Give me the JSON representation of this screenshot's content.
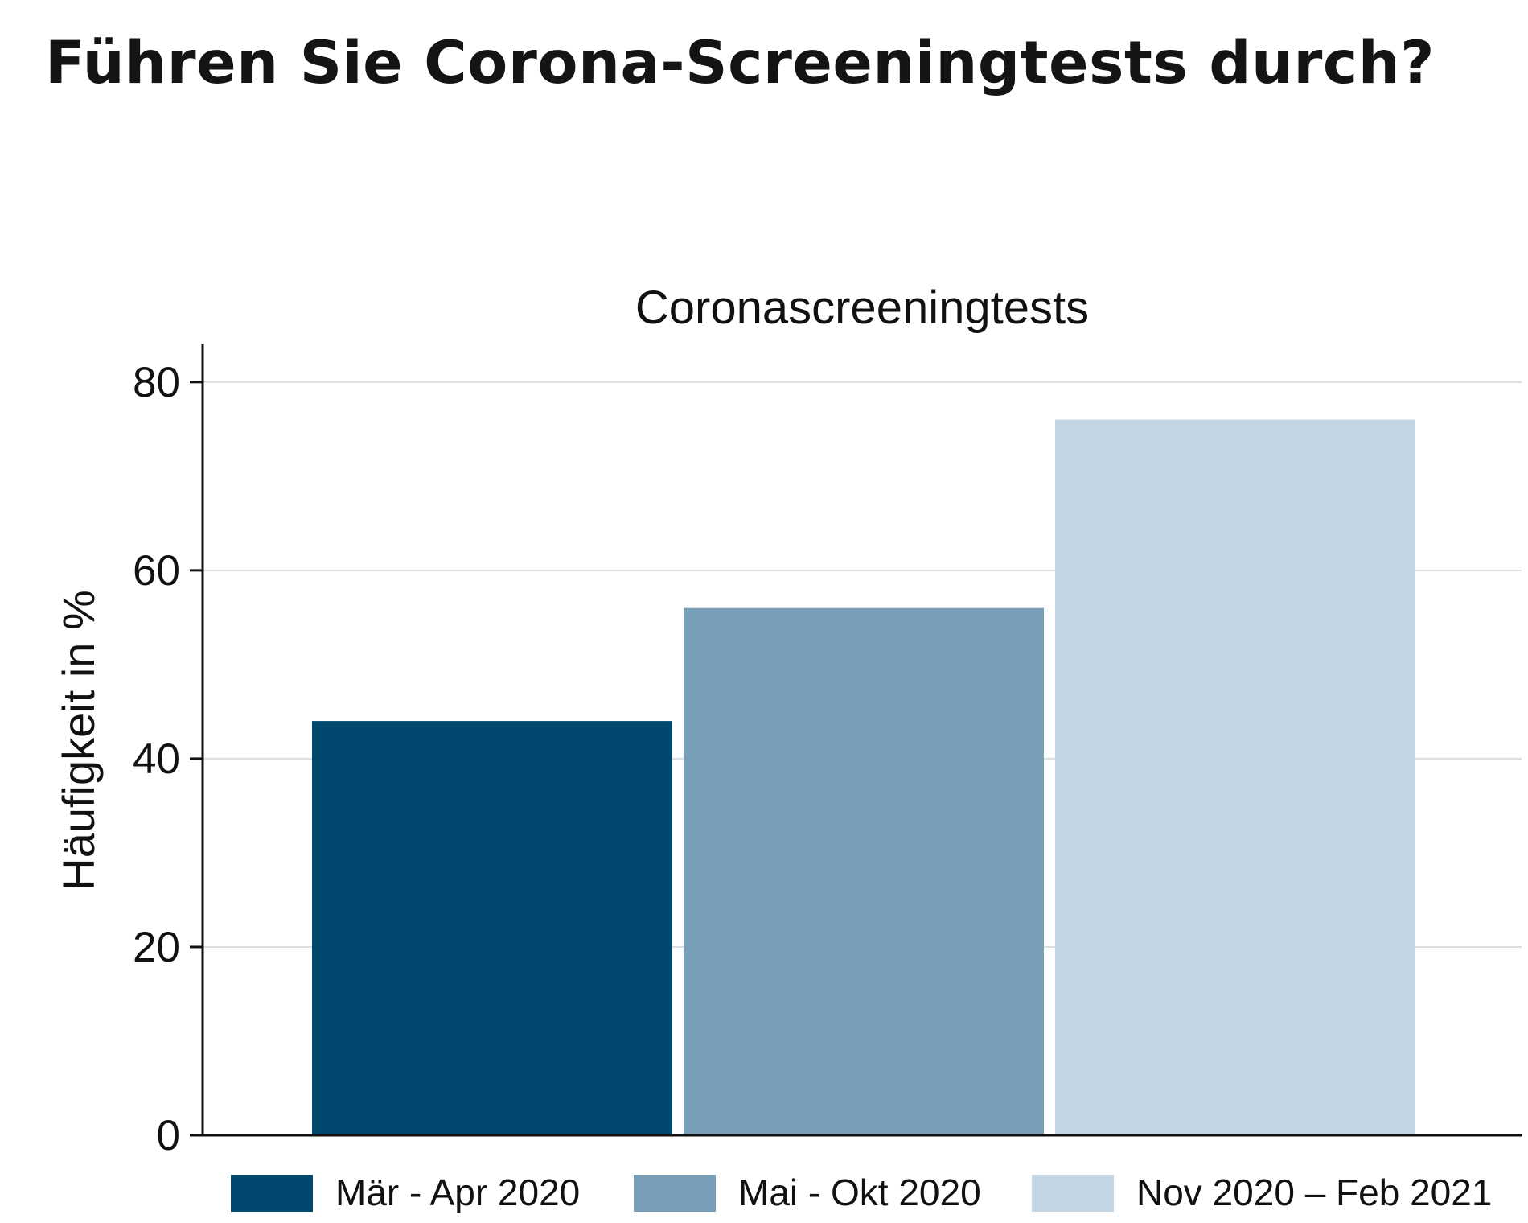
{
  "headline": "Führen Sie Corona-Screeningtests durch?",
  "chart_data": {
    "type": "bar",
    "title": "Coronascreeningtests",
    "ylabel": "Häufigkeit in %",
    "xlabel": "",
    "ylim": [
      0,
      84
    ],
    "yticks": [
      0,
      20,
      40,
      60,
      80
    ],
    "grid": true,
    "legend_position": "bottom",
    "series": [
      {
        "name": "Mär - Apr 2020",
        "value": 44,
        "color": "#01486f"
      },
      {
        "name": "Mai - Okt 2020",
        "value": 56,
        "color": "#789fb7"
      },
      {
        "name": "Nov 2020 – Feb 2021",
        "value": 76,
        "color": "#c3d5e3"
      }
    ]
  }
}
